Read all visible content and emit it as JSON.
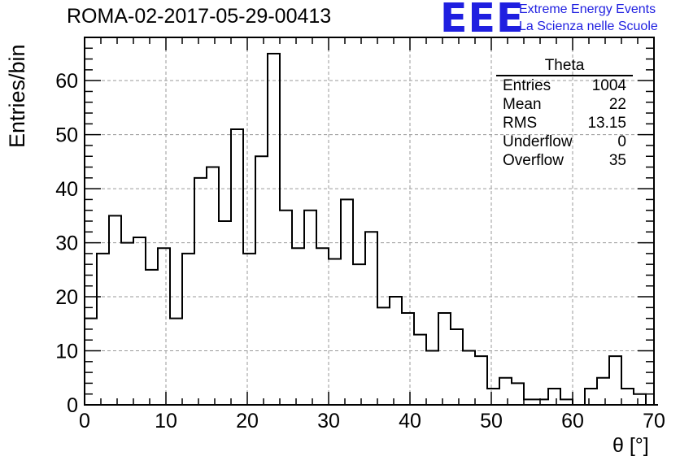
{
  "header": {
    "run_title": "ROMA-02-2017-05-29-00413",
    "logo_text": "EEE",
    "logo_line1": "Extreme Energy Events",
    "logo_line2": "La Scienza nelle Scuole",
    "logo_color": "#1f1fe0"
  },
  "stats_box": {
    "title": "Theta",
    "rows": [
      {
        "label": "Entries",
        "value": "1004"
      },
      {
        "label": "Mean",
        "value": "22"
      },
      {
        "label": "RMS",
        "value": "13.15"
      },
      {
        "label": "Underflow",
        "value": "0"
      },
      {
        "label": "Overflow",
        "value": "35"
      }
    ]
  },
  "chart_data": {
    "type": "histogram",
    "xlabel": "θ [°]",
    "ylabel": "Entries/bin",
    "xlim": [
      0,
      70
    ],
    "ylim": [
      0,
      68
    ],
    "xticks": [
      0,
      10,
      20,
      30,
      40,
      50,
      60,
      70
    ],
    "yticks": [
      0,
      10,
      20,
      30,
      40,
      50,
      60
    ],
    "grid": true,
    "bin_width": 1.5,
    "bin_start": 0,
    "values": [
      16,
      28,
      35,
      30,
      31,
      25,
      29,
      16,
      28,
      42,
      44,
      34,
      51,
      28,
      46,
      65,
      36,
      29,
      36,
      29,
      27,
      38,
      26,
      32,
      18,
      20,
      17,
      13,
      10,
      17,
      14,
      10,
      9,
      3,
      5,
      4,
      1,
      1,
      3,
      1,
      0,
      3,
      5,
      9,
      3,
      2,
      0
    ]
  }
}
